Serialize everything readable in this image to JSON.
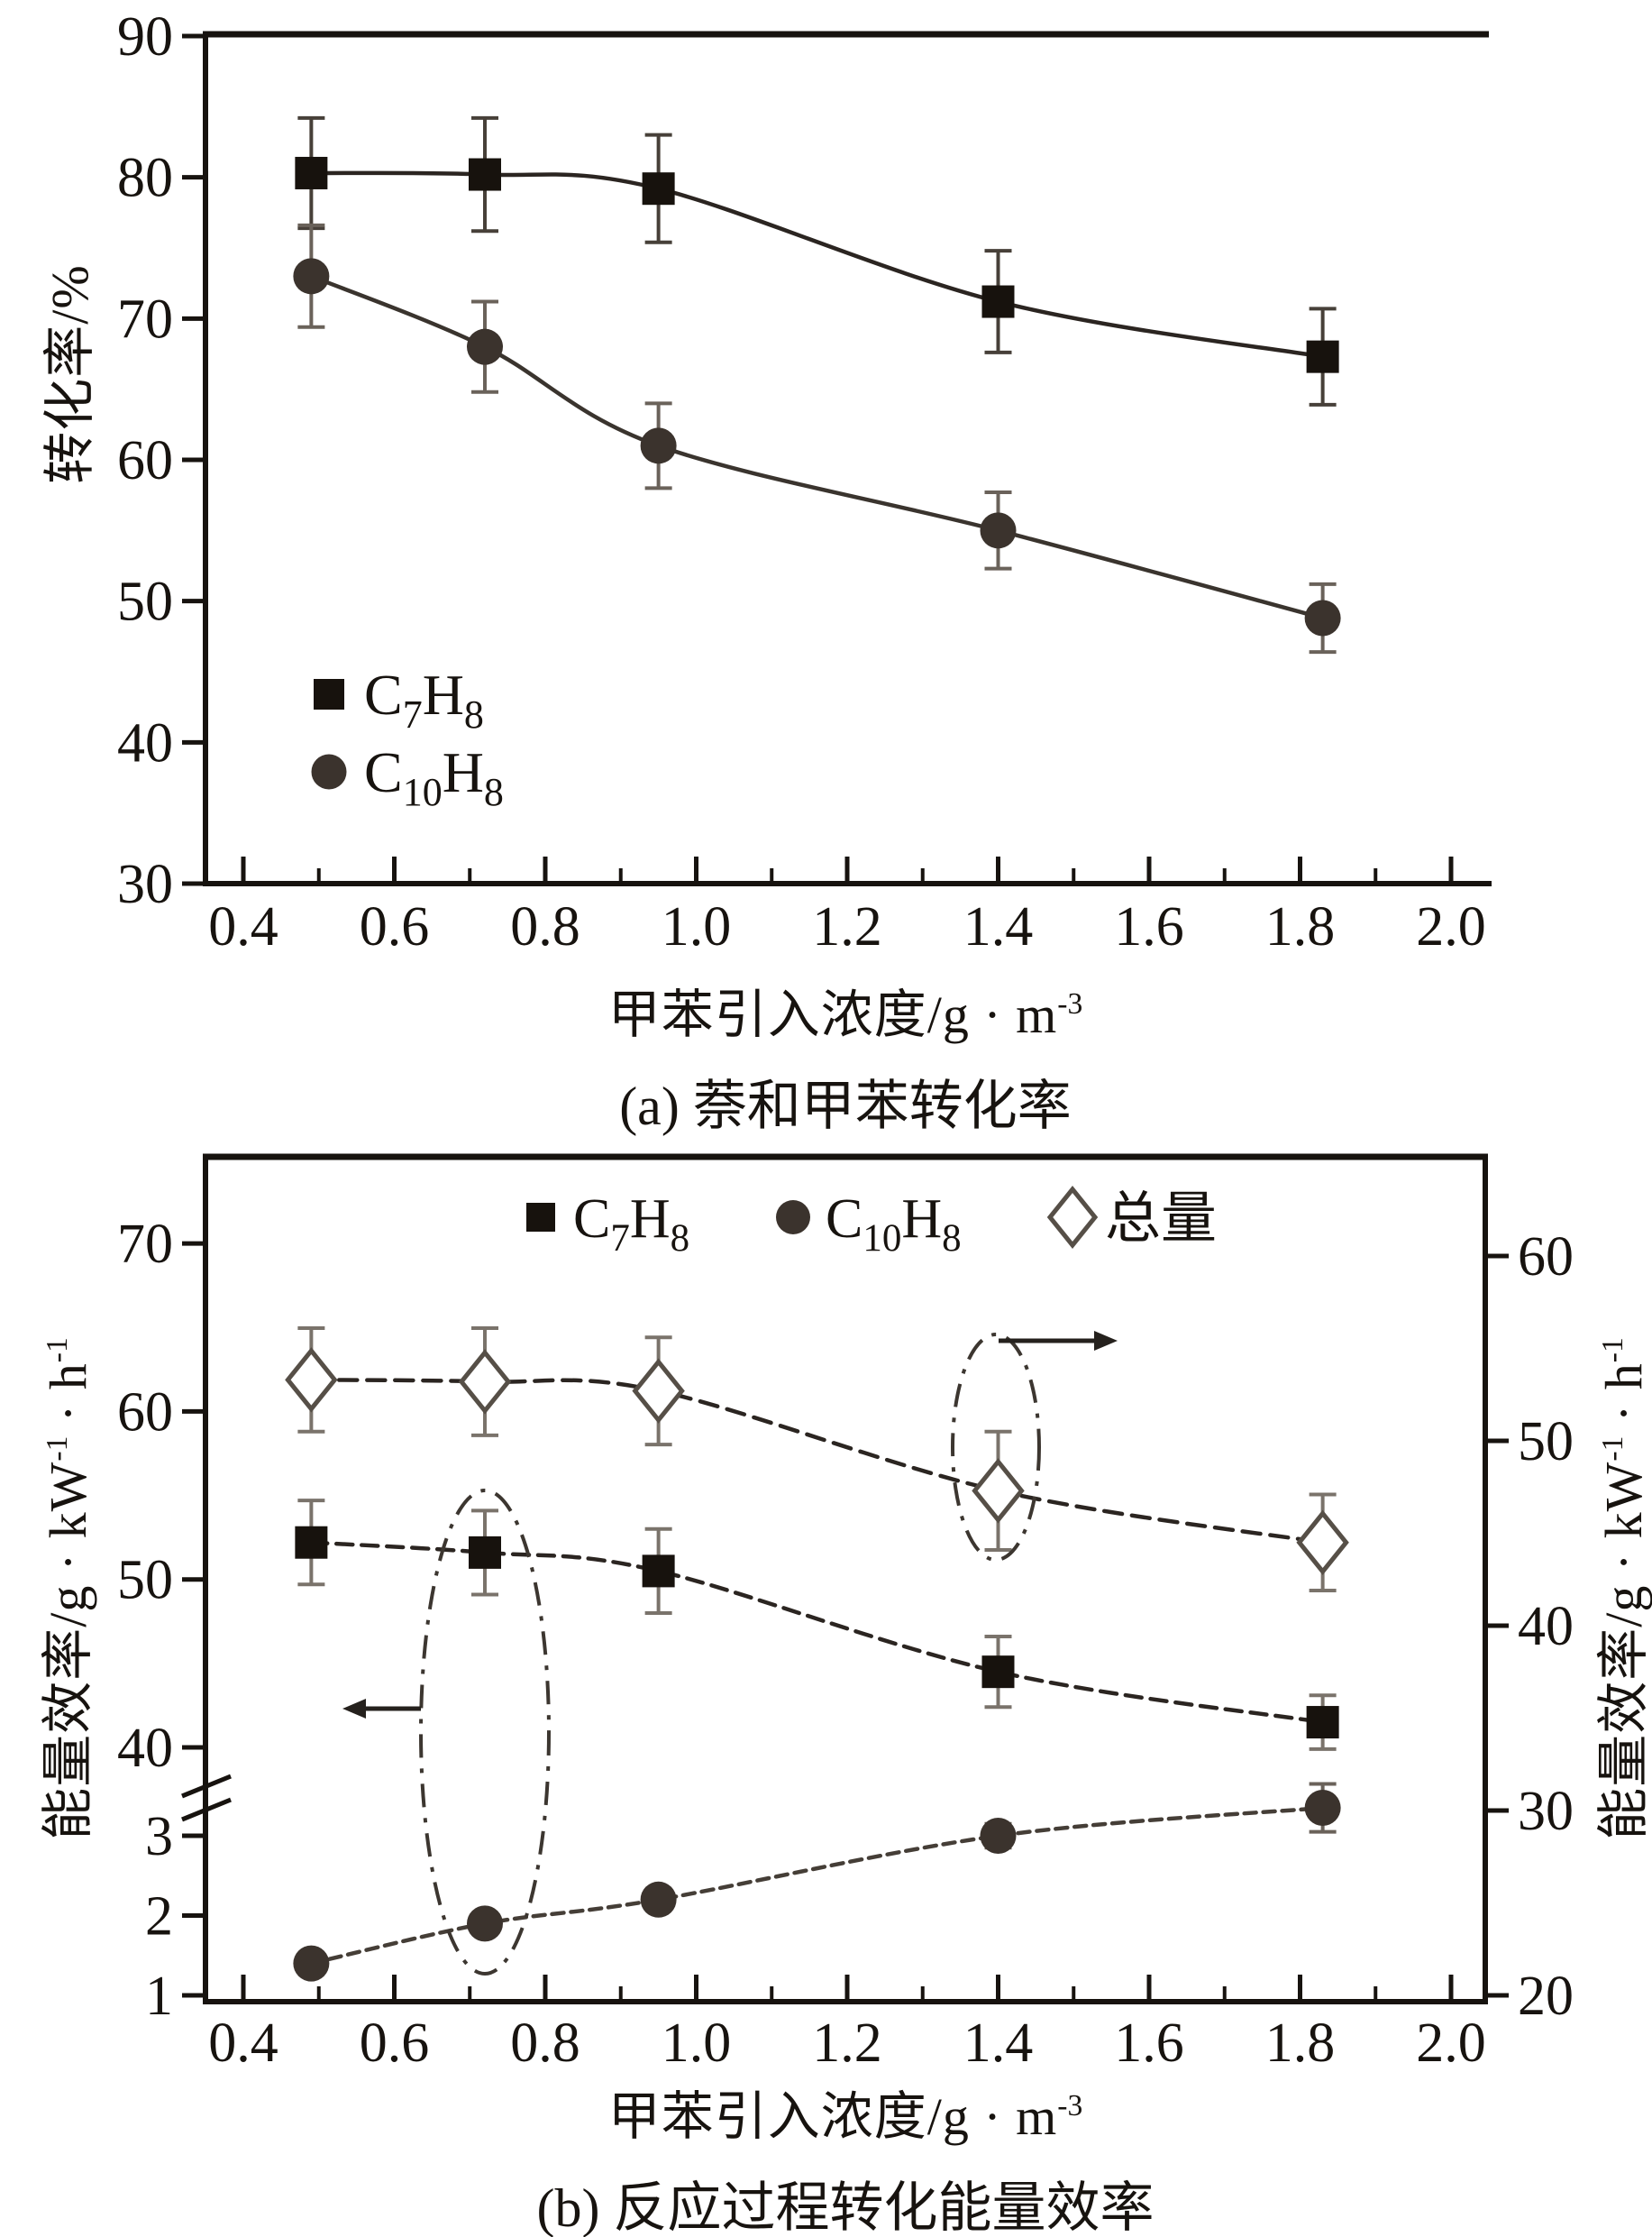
{
  "page": {
    "background": "#ffffff"
  },
  "chart_data": [
    {
      "id": "a",
      "type": "line",
      "caption": "(a) 萘和甲苯转化率",
      "xlabel_parts": [
        {
          "t": "甲苯引入浓度/g · m"
        },
        {
          "t": "-3",
          "sup": true
        }
      ],
      "ylabel_parts": [
        {
          "t": "转化率/%"
        }
      ],
      "xlim": [
        0.33,
        2.06
      ],
      "ylim": [
        30,
        90
      ],
      "x_ticks": [
        0.4,
        0.6,
        0.8,
        1.0,
        1.2,
        1.4,
        1.6,
        1.8,
        2.0
      ],
      "x_tick_labels": [
        "0.4",
        "0.6",
        "0.8",
        "1.0",
        "1.2",
        "1.4",
        "1.6",
        "1.8",
        "2.0"
      ],
      "x_minor_step": 0.1,
      "y_ticks": [
        30,
        40,
        50,
        60,
        70,
        80,
        90
      ],
      "y_tick_labels": [
        "30",
        "40",
        "50",
        "60",
        "70",
        "80",
        "90"
      ],
      "grid": false,
      "legend_position": "inside-lower-left",
      "x": [
        0.49,
        0.72,
        0.95,
        1.4,
        1.83
      ],
      "series": [
        {
          "name": "C7H8",
          "label_parts": [
            {
              "t": "C"
            },
            {
              "t": "7",
              "sub": true
            },
            {
              "t": "H"
            },
            {
              "t": "8",
              "sub": true
            }
          ],
          "marker": "square",
          "color": "#17120d",
          "line_color": "#2b2521",
          "err_color": "#474039",
          "values": [
            80.3,
            80.2,
            79.2,
            71.2,
            67.3
          ],
          "errors": [
            3.9,
            4.0,
            3.8,
            3.6,
            3.4
          ]
        },
        {
          "name": "C10H8",
          "label_parts": [
            {
              "t": "C"
            },
            {
              "t": "10",
              "sub": true
            },
            {
              "t": "H"
            },
            {
              "t": "8",
              "sub": true
            }
          ],
          "marker": "circle",
          "color": "#3b332d",
          "line_color": "#3a342e",
          "err_color": "#6a625a",
          "values": [
            73.0,
            68.0,
            61.0,
            55.0,
            48.8
          ],
          "errors": [
            3.6,
            3.2,
            3.0,
            2.7,
            2.4
          ]
        }
      ]
    },
    {
      "id": "b",
      "type": "line-dual-broken-axis",
      "caption": "(b) 反应过程转化能量效率",
      "xlabel_parts": [
        {
          "t": "甲苯引入浓度/g · m"
        },
        {
          "t": "-3",
          "sup": true
        }
      ],
      "ylabel_left_parts": [
        {
          "t": "能量效率/g · kW"
        },
        {
          "t": "-1",
          "sup": true
        },
        {
          "t": " · h"
        },
        {
          "t": "-1",
          "sup": true
        }
      ],
      "ylabel_right_parts": [
        {
          "t": "能量效率/g · kW"
        },
        {
          "t": "-1",
          "sup": true
        },
        {
          "t": " · h"
        },
        {
          "t": "-1",
          "sup": true
        }
      ],
      "xlim": [
        0.33,
        2.06
      ],
      "x_ticks": [
        0.4,
        0.6,
        0.8,
        1.0,
        1.2,
        1.4,
        1.6,
        1.8,
        2.0
      ],
      "x_tick_labels": [
        "0.4",
        "0.6",
        "0.8",
        "1.0",
        "1.2",
        "1.4",
        "1.6",
        "1.8",
        "2.0"
      ],
      "x_minor_step": 0.1,
      "left_axis": {
        "upper_ticks": [
          40,
          50,
          60,
          70
        ],
        "upper_labels": [
          "40",
          "50",
          "60",
          "70"
        ],
        "lower_ticks": [
          1,
          2,
          3
        ],
        "lower_labels": [
          "1",
          "2",
          "3"
        ],
        "has_break": true
      },
      "right_axis": {
        "ticks": [
          20,
          30,
          40,
          50,
          60
        ],
        "labels": [
          "20",
          "30",
          "40",
          "50",
          "60"
        ]
      },
      "legend_position": "inside-top",
      "x": [
        0.49,
        0.72,
        0.95,
        1.4,
        1.83
      ],
      "series": [
        {
          "name": "C7H8",
          "label_parts": [
            {
              "t": "C"
            },
            {
              "t": "7",
              "sub": true
            },
            {
              "t": "H"
            },
            {
              "t": "8",
              "sub": true
            }
          ],
          "axis": "left_upper",
          "marker": "square",
          "color": "#17120d",
          "line_color": "#2b2521",
          "err_color": "#7a736b",
          "values": [
            52.2,
            51.6,
            50.5,
            44.5,
            41.5
          ],
          "errors": [
            2.5,
            2.5,
            2.5,
            2.1,
            1.6
          ]
        },
        {
          "name": "C10H8",
          "label_parts": [
            {
              "t": "C"
            },
            {
              "t": "10",
              "sub": true
            },
            {
              "t": "H"
            },
            {
              "t": "8",
              "sub": true
            }
          ],
          "axis": "left_lower",
          "marker": "circle",
          "color": "#3b332d",
          "line_color": "#453e37",
          "err_color": "#6a625a",
          "values": [
            1.4,
            1.9,
            2.2,
            3.0,
            3.35
          ],
          "errors": [
            0,
            0,
            0,
            0.15,
            0.3
          ]
        },
        {
          "name": "总量",
          "label_parts": [
            {
              "t": "总量"
            }
          ],
          "axis": "right",
          "marker": "diamond",
          "color": "#564f47",
          "line_color": "#2b2521",
          "err_color": "#7a736b",
          "values": [
            53.3,
            53.2,
            52.7,
            47.3,
            44.5
          ],
          "errors": [
            2.8,
            2.9,
            2.9,
            3.2,
            2.6
          ]
        }
      ],
      "annotations": [
        {
          "type": "ellipse-arrow",
          "side": "left",
          "meaning": "squares and circles read on left broken axis",
          "arrow_dir": "left"
        },
        {
          "type": "ellipse-arrow",
          "side": "right",
          "meaning": "diamonds read on right axis",
          "arrow_dir": "right"
        }
      ]
    }
  ]
}
